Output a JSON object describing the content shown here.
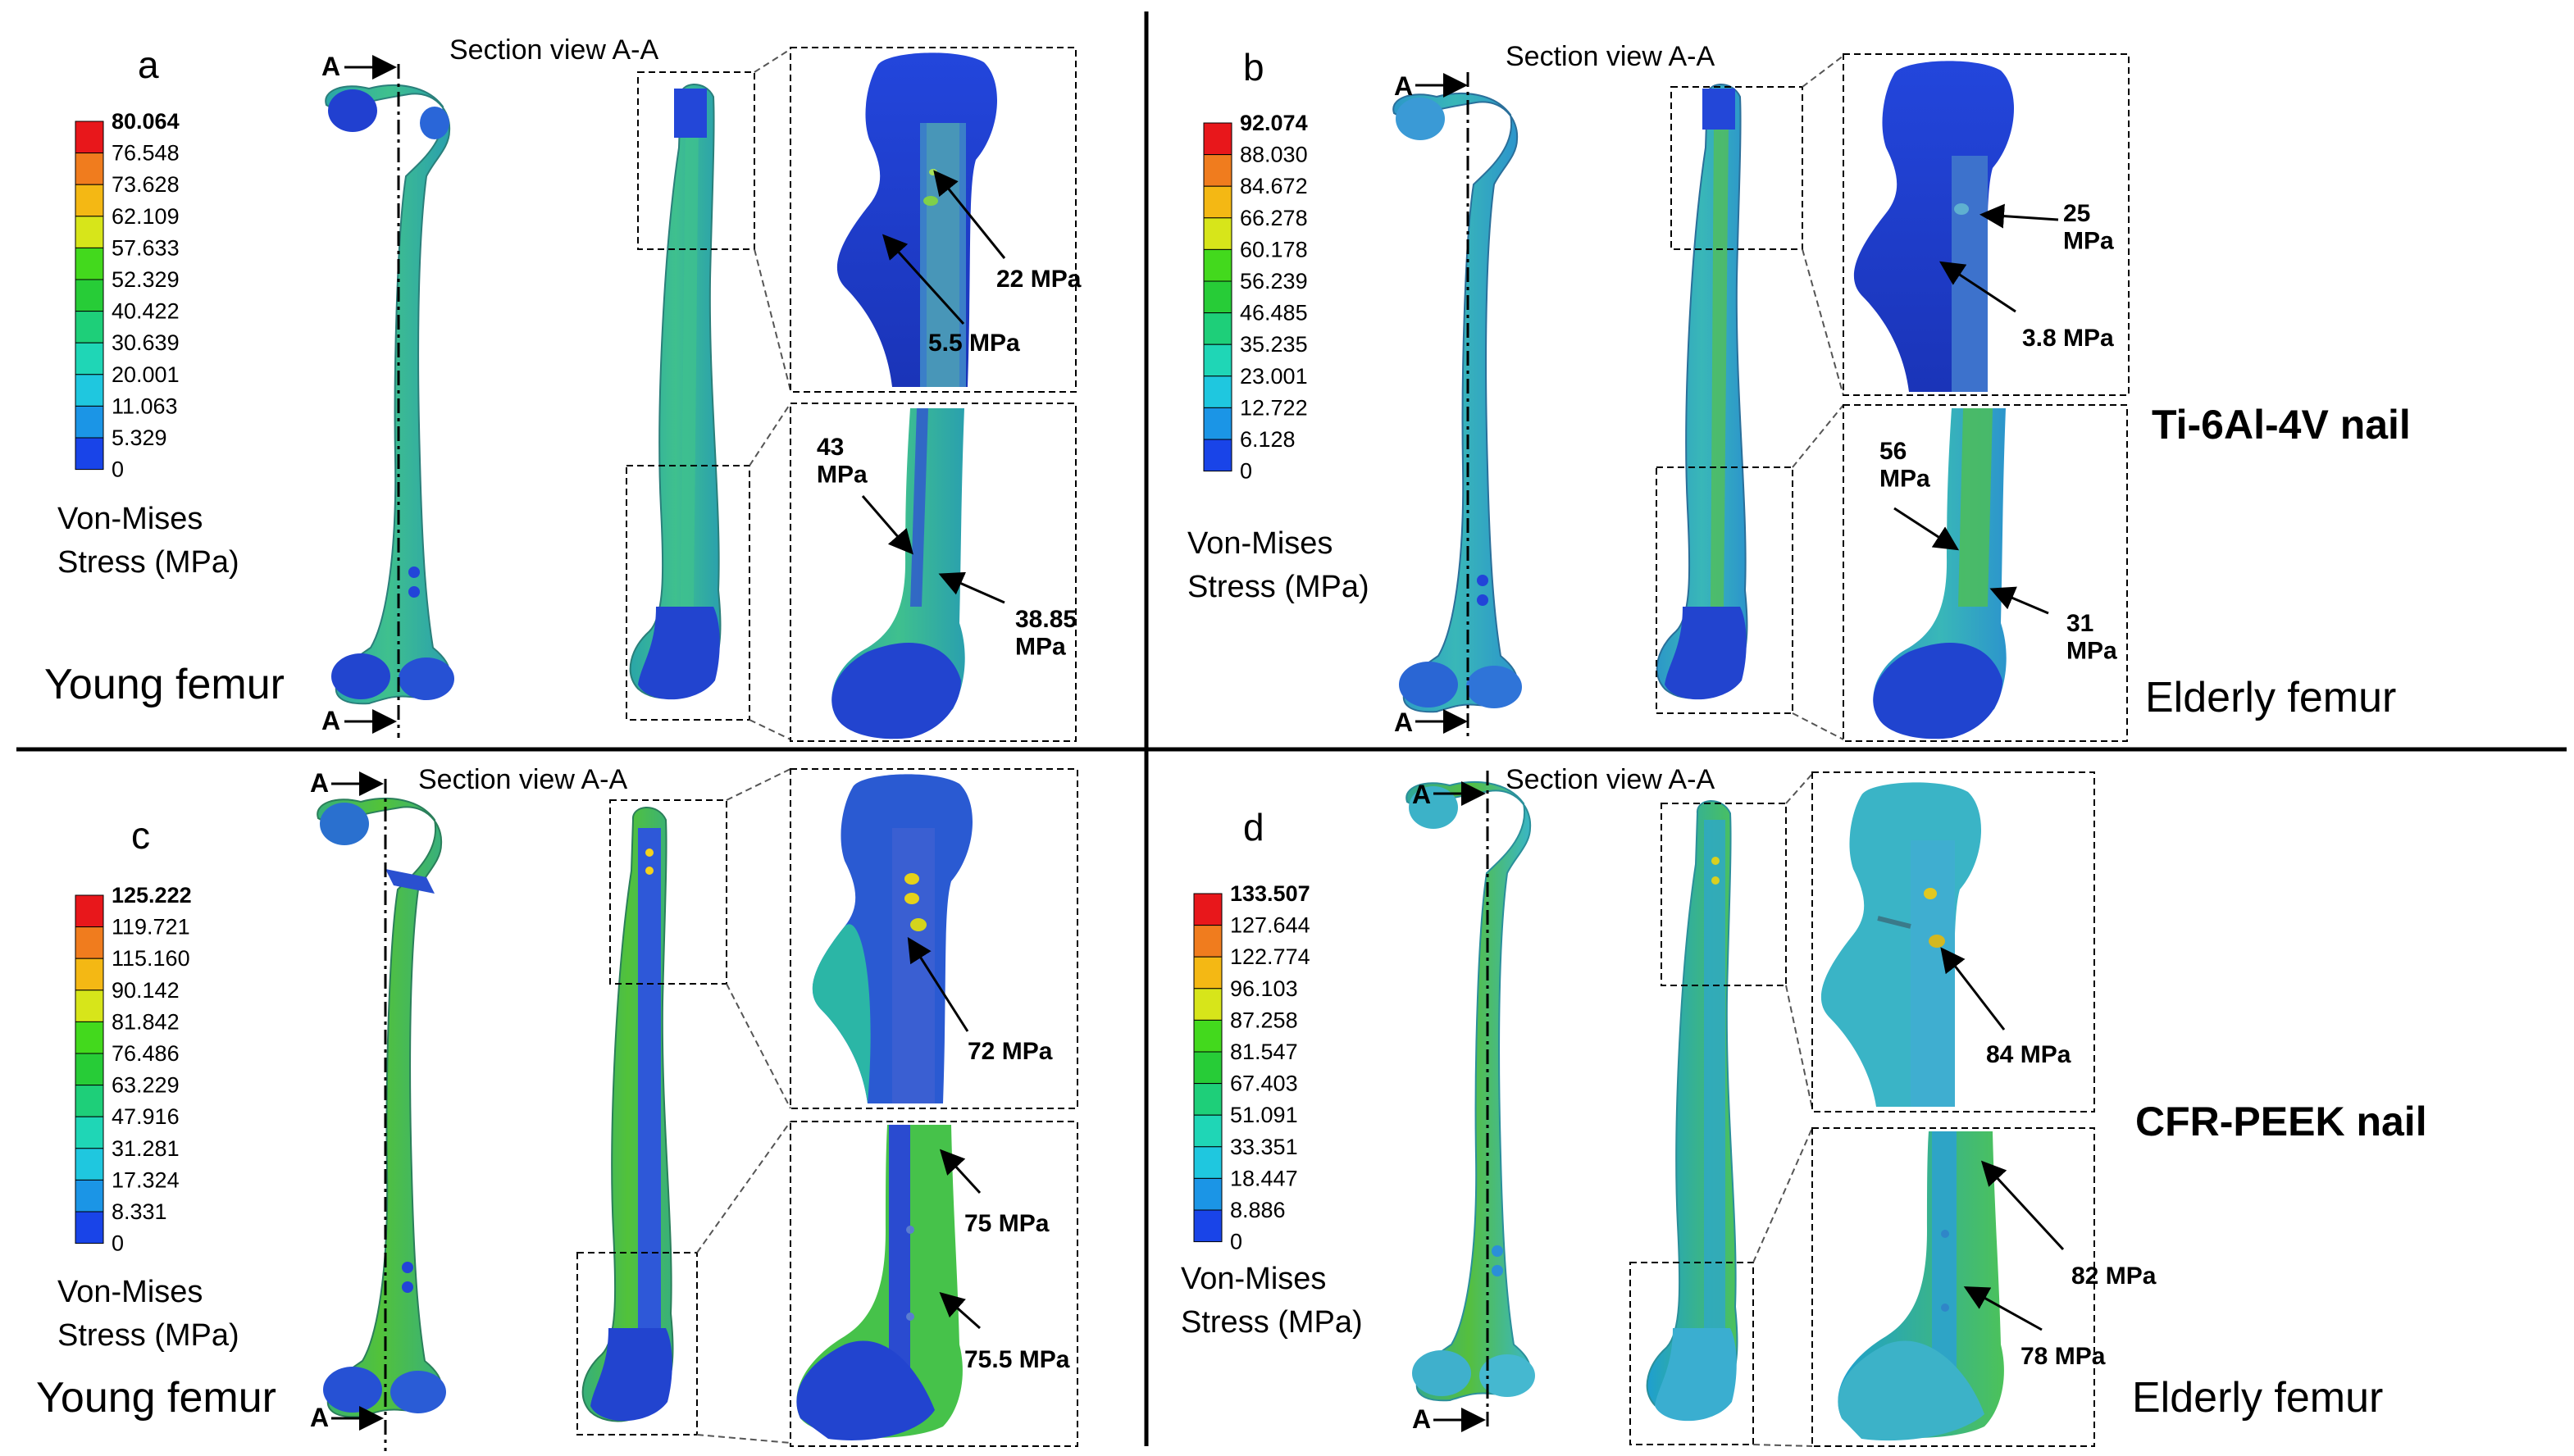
{
  "panels": [
    {
      "letter": "a",
      "section_label": "Section  view A-A",
      "section_markers": [
        "A",
        "A"
      ],
      "legend": {
        "values": [
          "80.064",
          "76.548",
          "73.628",
          "62.109",
          "57.633",
          "52.329",
          "40.422",
          "30.639",
          "20.001",
          "11.063",
          "5.329",
          "0"
        ],
        "title_line1": "Von-Mises",
        "title_line2": "Stress (MPa)"
      },
      "femur_label": "Young femur",
      "annotations": [
        {
          "text": "22 MPa"
        },
        {
          "text": "5.5 MPa"
        },
        {
          "text": "43\nMPa"
        },
        {
          "text": "38.85\nMPa"
        }
      ]
    },
    {
      "letter": "b",
      "section_label": "Section  view A-A",
      "section_markers": [
        "A",
        "A"
      ],
      "legend": {
        "values": [
          "92.074",
          "88.030",
          "84.672",
          "66.278",
          "60.178",
          "56.239",
          "46.485",
          "35.235",
          "23.001",
          "12.722",
          "6.128",
          "0"
        ],
        "title_line1": "Von-Mises",
        "title_line2": "Stress (MPa)"
      },
      "femur_label": "Elderly femur",
      "annotations": [
        {
          "text": "25\nMPa"
        },
        {
          "text": "3.8 MPa"
        },
        {
          "text": "56\nMPa"
        },
        {
          "text": "31\nMPa"
        }
      ]
    },
    {
      "letter": "c",
      "section_label": "Section  view A-A",
      "section_markers": [
        "A",
        "A"
      ],
      "legend": {
        "values": [
          "125.222",
          "119.721",
          "115.160",
          "90.142",
          "81.842",
          "76.486",
          "63.229",
          "47.916",
          "31.281",
          "17.324",
          "8.331",
          "0"
        ],
        "title_line1": "Von-Mises",
        "title_line2": "Stress (MPa)"
      },
      "femur_label": "Young femur",
      "annotations": [
        {
          "text": "72 MPa"
        },
        {
          "text": "75 MPa"
        },
        {
          "text": "75.5 MPa"
        }
      ]
    },
    {
      "letter": "d",
      "section_label": "Section  view A-A",
      "section_markers": [
        "A",
        "A"
      ],
      "legend": {
        "values": [
          "133.507",
          "127.644",
          "122.774",
          "96.103",
          "87.258",
          "81.547",
          "67.403",
          "51.091",
          "33.351",
          "18.447",
          "8.886",
          "0"
        ],
        "title_line1": "Von-Mises",
        "title_line2": "Stress (MPa)"
      },
      "femur_label": "Elderly femur",
      "annotations": [
        {
          "text": "84 MPa"
        },
        {
          "text": "82 MPa"
        },
        {
          "text": "78 MPa"
        }
      ]
    }
  ],
  "row_labels": [
    "Ti-6Al-4V nail",
    "CFR-PEEK nail"
  ],
  "colors": {
    "scale": [
      "#e8171b",
      "#f07c1e",
      "#f4b814",
      "#d7e51a",
      "#43d91d",
      "#27cc37",
      "#1ecf79",
      "#1fd6b6",
      "#1fc7df",
      "#1b95e6",
      "#1944e8"
    ],
    "young_ti_bone": "#2fb59f",
    "elderly_ti_bone": "#31a6c9",
    "young_peek_bone": "#3cb06a",
    "elderly_peek_bone": "#3ab9c9",
    "condyle": "#2a55d6",
    "dark_blue": "#1f3fd8"
  }
}
